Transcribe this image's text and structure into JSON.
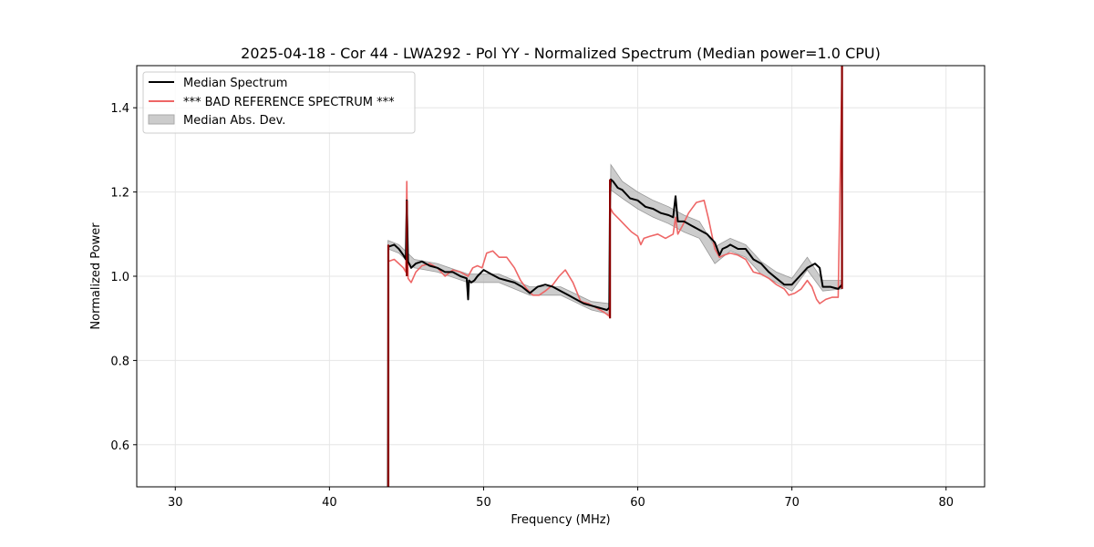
{
  "chart_data": {
    "type": "line",
    "title": "2025-04-18 - Cor 44 - LWA292 - Pol YY - Normalized Spectrum (Median power=1.0 CPU)",
    "xlabel": "Frequency (MHz)",
    "ylabel": "Normalized Power",
    "xlim": [
      27.5,
      82.5
    ],
    "ylim": [
      0.5,
      1.5
    ],
    "xticks": [
      30,
      40,
      50,
      60,
      70,
      80
    ],
    "yticks": [
      0.6,
      0.8,
      1.0,
      1.2,
      1.4
    ],
    "grid": true,
    "legend_position": "top-left",
    "legend": {
      "median": "Median Spectrum",
      "bad": "*** BAD REFERENCE SPECTRUM ***",
      "mad": "Median Abs. Dev."
    },
    "colors": {
      "median": "#000000",
      "bad": "#ee6666",
      "band": "#bbbbbb",
      "spike": "#8b0000",
      "grid": "#e6e6e6"
    },
    "series": [
      {
        "name": "Median Spectrum",
        "x": [
          43.8,
          43.82,
          44.2,
          44.5,
          44.8,
          44.95,
          45.02,
          45.1,
          45.3,
          45.6,
          46.0,
          46.5,
          47.0,
          47.5,
          48.0,
          48.5,
          48.9,
          49.0,
          49.05,
          49.2,
          49.4,
          49.6,
          50.0,
          50.5,
          51.0,
          51.5,
          52.0,
          52.5,
          53.0,
          53.5,
          54.0,
          54.5,
          55.0,
          55.5,
          56.0,
          56.5,
          57.0,
          57.5,
          58.0,
          58.15,
          58.2,
          58.25,
          58.4,
          58.7,
          59.0,
          59.5,
          60.0,
          60.5,
          61.0,
          61.5,
          62.0,
          62.3,
          62.45,
          62.6,
          63.0,
          63.5,
          64.0,
          64.5,
          65.0,
          65.3,
          65.5,
          65.8,
          66.0,
          66.5,
          67.0,
          67.5,
          68.0,
          68.5,
          69.0,
          69.5,
          70.0,
          70.5,
          71.0,
          71.5,
          71.8,
          72.0,
          72.5,
          73.0,
          73.25
        ],
        "y": [
          0.5,
          1.07,
          1.075,
          1.065,
          1.05,
          1.04,
          1.18,
          1.035,
          1.02,
          1.03,
          1.035,
          1.025,
          1.02,
          1.01,
          1.01,
          1.0,
          0.995,
          0.945,
          0.99,
          0.985,
          0.99,
          1.0,
          1.015,
          1.005,
          0.995,
          0.99,
          0.985,
          0.975,
          0.96,
          0.975,
          0.98,
          0.975,
          0.965,
          0.955,
          0.945,
          0.935,
          0.93,
          0.925,
          0.92,
          0.925,
          1.19,
          1.23,
          1.225,
          1.21,
          1.205,
          1.185,
          1.18,
          1.165,
          1.16,
          1.15,
          1.145,
          1.14,
          1.19,
          1.13,
          1.13,
          1.12,
          1.11,
          1.1,
          1.08,
          1.05,
          1.065,
          1.07,
          1.075,
          1.065,
          1.065,
          1.04,
          1.03,
          1.01,
          0.995,
          0.98,
          0.98,
          1.0,
          1.02,
          1.03,
          1.02,
          0.975,
          0.975,
          0.97,
          0.98
        ]
      },
      {
        "name": "*** BAD REFERENCE SPECTRUM ***",
        "x": [
          43.8,
          43.82,
          44.2,
          44.5,
          44.8,
          44.95,
          45.02,
          45.1,
          45.3,
          45.6,
          46.0,
          46.5,
          47.0,
          47.5,
          48.0,
          48.5,
          49.0,
          49.3,
          49.6,
          49.9,
          50.2,
          50.6,
          51.0,
          51.5,
          52.0,
          52.4,
          52.8,
          53.2,
          53.6,
          54.0,
          54.5,
          54.9,
          55.3,
          55.8,
          56.3,
          56.8,
          57.3,
          57.8,
          58.15,
          58.2,
          58.25,
          58.4,
          58.8,
          59.2,
          59.6,
          60.0,
          60.2,
          60.4,
          60.8,
          61.3,
          61.8,
          62.3,
          62.45,
          62.6,
          62.9,
          63.3,
          63.8,
          64.3,
          64.6,
          65.0,
          65.3,
          65.6,
          66.0,
          66.5,
          67.0,
          67.5,
          68.0,
          68.5,
          69.0,
          69.5,
          69.8,
          70.2,
          70.6,
          71.0,
          71.3,
          71.6,
          71.8,
          72.2,
          72.6,
          73.0,
          73.25
        ],
        "y": [
          0.5,
          1.035,
          1.04,
          1.03,
          1.02,
          1.01,
          1.225,
          0.995,
          0.985,
          1.01,
          1.025,
          1.03,
          1.02,
          1.0,
          1.015,
          1.01,
          1.0,
          1.02,
          1.025,
          1.02,
          1.055,
          1.06,
          1.045,
          1.045,
          1.02,
          0.99,
          0.97,
          0.955,
          0.955,
          0.965,
          0.98,
          1.0,
          1.015,
          0.985,
          0.94,
          0.935,
          0.925,
          0.915,
          0.905,
          1.14,
          1.16,
          1.15,
          1.135,
          1.12,
          1.105,
          1.095,
          1.075,
          1.09,
          1.095,
          1.1,
          1.09,
          1.1,
          1.14,
          1.1,
          1.12,
          1.15,
          1.175,
          1.18,
          1.135,
          1.065,
          1.045,
          1.05,
          1.055,
          1.05,
          1.04,
          1.01,
          1.005,
          0.995,
          0.98,
          0.97,
          0.955,
          0.96,
          0.97,
          0.99,
          0.975,
          0.945,
          0.935,
          0.945,
          0.95,
          0.95,
          1.5
        ]
      }
    ],
    "mad_band": {
      "name": "Median Abs. Dev.",
      "x": [
        43.8,
        44.5,
        45.5,
        47.0,
        49.0,
        51.0,
        53.0,
        55.0,
        57.0,
        58.15,
        58.25,
        59.0,
        60.0,
        61.0,
        62.0,
        63.0,
        64.0,
        65.0,
        66.0,
        67.0,
        68.0,
        69.0,
        70.0,
        71.0,
        72.0,
        73.25
      ],
      "lower": [
        1.065,
        1.055,
        1.02,
        1.01,
        0.985,
        0.985,
        0.955,
        0.955,
        0.92,
        0.91,
        1.205,
        1.185,
        1.16,
        1.14,
        1.125,
        1.105,
        1.09,
        1.03,
        1.06,
        1.045,
        1.005,
        0.985,
        0.965,
        1.015,
        0.965,
        0.97
      ],
      "upper": [
        1.085,
        1.075,
        1.04,
        1.03,
        1.005,
        1.005,
        0.975,
        0.975,
        0.94,
        0.935,
        1.265,
        1.225,
        1.2,
        1.18,
        1.165,
        1.145,
        1.13,
        1.07,
        1.09,
        1.075,
        1.035,
        1.01,
        0.995,
        1.045,
        0.99,
        0.99
      ]
    },
    "spikes": [
      {
        "x": 43.82,
        "y_from": 0.5,
        "y_to": 1.075
      },
      {
        "x": 45.02,
        "y_from": 1.0,
        "y_to": 1.18
      },
      {
        "x": 58.2,
        "y_from": 0.9,
        "y_to": 1.23
      },
      {
        "x": 73.25,
        "y_from": 0.97,
        "y_to": 1.5
      }
    ]
  }
}
